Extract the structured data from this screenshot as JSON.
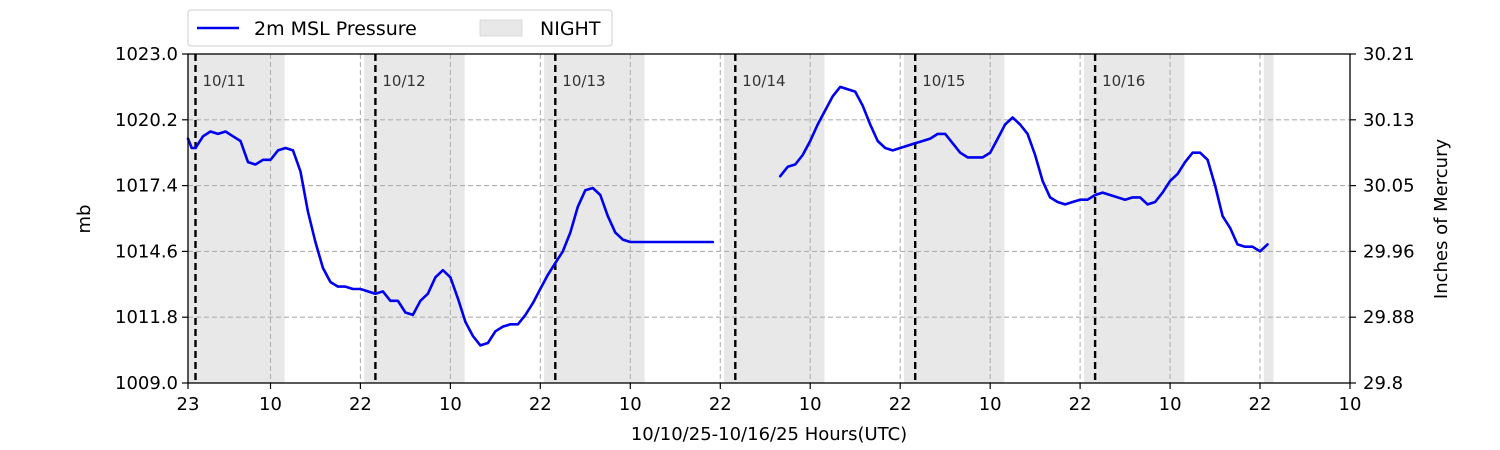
{
  "chart_data": {
    "type": "line",
    "xlabel": "10/10/25-10/16/25  Hours(UTC)",
    "ylabel": "mb",
    "ylabel_right": "Inches of Mercury",
    "ylim": [
      1009.0,
      1023.0
    ],
    "ylim_right": [
      29.8,
      30.21
    ],
    "xlim_hours": [
      0,
      155
    ],
    "x_ticks": [
      {
        "hour": 0,
        "label": "23"
      },
      {
        "hour": 11,
        "label": "10"
      },
      {
        "hour": 23,
        "label": "22"
      },
      {
        "hour": 35,
        "label": "10"
      },
      {
        "hour": 47,
        "label": "22"
      },
      {
        "hour": 59,
        "label": "10"
      },
      {
        "hour": 71,
        "label": "22"
      },
      {
        "hour": 83,
        "label": "10"
      },
      {
        "hour": 95,
        "label": "22"
      },
      {
        "hour": 107,
        "label": "10"
      },
      {
        "hour": 119,
        "label": "22"
      },
      {
        "hour": 131,
        "label": "10"
      },
      {
        "hour": 143,
        "label": "22"
      },
      {
        "hour": 155,
        "label": "10"
      }
    ],
    "y_ticks_left": [
      "1009.0",
      "1011.8",
      "1014.6",
      "1017.4",
      "1020.2",
      "1023.0"
    ],
    "y_ticks_right": [
      "29.8",
      "29.88",
      "29.96",
      "30.05",
      "30.13",
      "30.21"
    ],
    "grid": "dashed-gray",
    "legend": {
      "placement": "top-left-outside",
      "entries": [
        {
          "label": "2m MSL Pressure",
          "color": "#0000ee",
          "kind": "line"
        },
        {
          "label": "NIGHT",
          "color": "#e8e8e8",
          "kind": "patch"
        }
      ]
    },
    "night_periods_hours": [
      [
        0,
        12.9
      ],
      [
        23.5,
        36.9
      ],
      [
        47.5,
        60.9
      ],
      [
        71.5,
        84.9
      ],
      [
        95.5,
        108.9
      ],
      [
        119.5,
        132.9
      ],
      [
        143.5,
        144.8
      ]
    ],
    "midnights": [
      {
        "hour": 1,
        "label": "10/11"
      },
      {
        "hour": 25,
        "label": "10/12"
      },
      {
        "hour": 49,
        "label": "10/13"
      },
      {
        "hour": 73,
        "label": "10/14"
      },
      {
        "hour": 97,
        "label": "10/15"
      },
      {
        "hour": 121,
        "label": "10/16"
      }
    ],
    "series": [
      {
        "name": "2m MSL Pressure",
        "color": "#0000ee",
        "segments": [
          {
            "x": [
              0,
              0.5,
              1,
              2,
              3,
              4,
              5,
              6,
              7,
              8,
              9,
              10,
              11,
              12,
              13,
              14,
              15,
              16,
              17,
              18,
              19,
              20,
              21,
              22,
              23,
              24,
              25,
              26,
              27,
              28,
              29,
              30,
              31,
              32,
              33,
              34,
              35,
              36,
              37,
              38,
              39,
              40,
              41,
              42,
              43,
              44,
              45,
              46,
              47,
              48,
              49,
              50,
              51,
              52,
              53,
              54,
              55,
              56,
              57,
              58,
              59,
              60,
              61,
              62,
              63,
              64,
              65,
              66,
              67,
              68,
              69,
              70
            ],
            "y": [
              1019.4,
              1019.0,
              1019.0,
              1019.5,
              1019.7,
              1019.6,
              1019.7,
              1019.5,
              1019.3,
              1018.4,
              1018.3,
              1018.5,
              1018.5,
              1018.9,
              1019.0,
              1018.9,
              1018.0,
              1016.3,
              1015.0,
              1013.9,
              1013.3,
              1013.1,
              1013.1,
              1013.0,
              1013.0,
              1012.9,
              1012.8,
              1012.9,
              1012.5,
              1012.5,
              1012.0,
              1011.9,
              1012.5,
              1012.8,
              1013.5,
              1013.8,
              1013.5,
              1012.6,
              1011.6,
              1011.0,
              1010.6,
              1010.7,
              1011.2,
              1011.4,
              1011.5,
              1011.5,
              1011.9,
              1012.4,
              1013.0,
              1013.6,
              1014.1,
              1014.6,
              1015.4,
              1016.5,
              1017.2,
              1017.3,
              1017.0,
              1016.1,
              1015.4,
              1015.1,
              1015.0,
              1015.0,
              1015.0,
              1015.0,
              1015.0,
              1015.0,
              1015.0,
              1015.0,
              1015.0,
              1015.0,
              1015.0,
              1015.0
            ]
          },
          {
            "x": [
              79,
              80,
              81,
              82,
              83,
              84,
              85,
              86,
              87,
              88,
              89,
              90,
              91,
              92,
              93,
              94,
              95,
              96,
              97,
              98,
              99,
              100,
              101,
              102,
              103,
              104,
              105,
              106,
              107,
              108,
              109,
              110,
              111,
              112,
              113,
              114,
              115,
              116,
              117,
              118,
              119,
              120,
              121,
              122,
              123,
              124,
              125,
              126,
              127,
              128,
              129,
              130,
              131,
              132,
              133,
              134,
              135,
              136,
              137,
              138,
              139,
              140,
              141,
              142,
              143,
              144
            ],
            "y": [
              1017.8,
              1018.2,
              1018.3,
              1018.7,
              1019.3,
              1020.0,
              1020.6,
              1021.2,
              1021.6,
              1021.5,
              1021.4,
              1020.8,
              1020.0,
              1019.3,
              1019.0,
              1018.9,
              1019.0,
              1019.1,
              1019.2,
              1019.3,
              1019.4,
              1019.6,
              1019.6,
              1019.2,
              1018.8,
              1018.6,
              1018.6,
              1018.6,
              1018.8,
              1019.4,
              1020.0,
              1020.3,
              1020.0,
              1019.6,
              1018.7,
              1017.6,
              1016.9,
              1016.7,
              1016.6,
              1016.7,
              1016.8,
              1016.8,
              1017.0,
              1017.1,
              1017.0,
              1016.9,
              1016.8,
              1016.9,
              1016.9,
              1016.6,
              1016.7,
              1017.1,
              1017.6,
              1017.9,
              1018.4,
              1018.8,
              1018.8,
              1018.5,
              1017.4,
              1016.1,
              1015.6,
              1014.9,
              1014.8,
              1014.8,
              1014.6,
              1014.9
            ]
          }
        ]
      }
    ]
  }
}
